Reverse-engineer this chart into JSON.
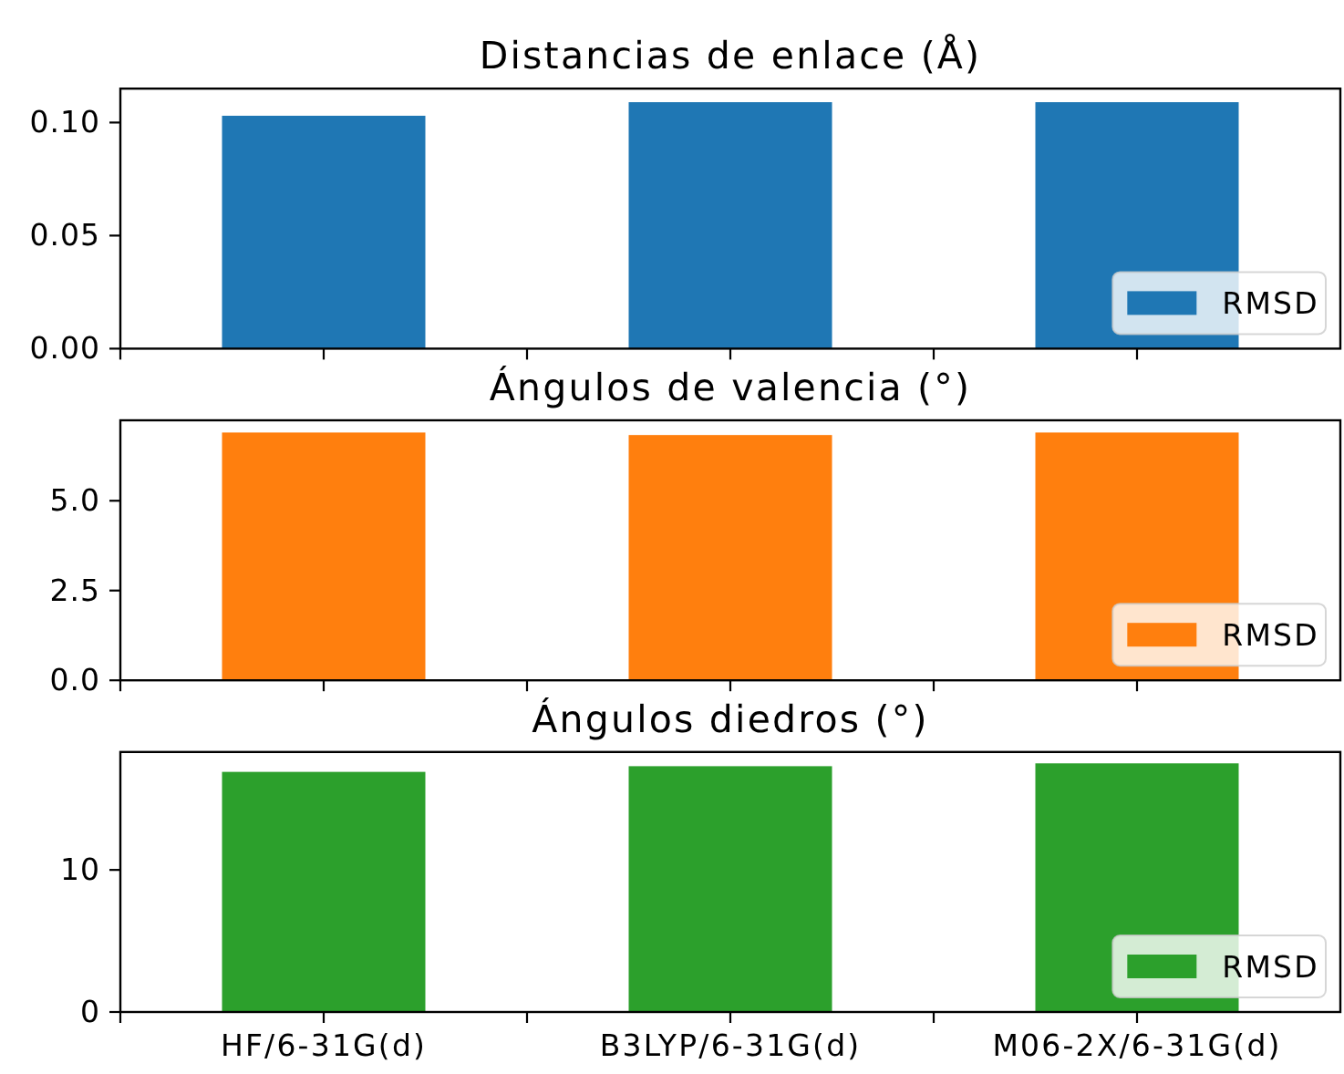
{
  "chart_data": [
    {
      "type": "bar",
      "title": "Distancias de enlace (Å)",
      "categories": [
        null,
        null,
        null
      ],
      "series": [
        {
          "name": "RMSD",
          "color": "#1f77b4",
          "values": [
            0.103,
            0.109,
            0.109
          ]
        }
      ],
      "ylim": [
        0,
        0.115
      ],
      "yticks": [
        {
          "value": 0,
          "label": "0.00"
        },
        {
          "value": 0.05,
          "label": "0.05"
        },
        {
          "value": 0.1,
          "label": "0.10"
        }
      ],
      "legend": "bottom right",
      "tick_labels": "y"
    },
    {
      "type": "bar",
      "title": "Ángulos de valencia (°)",
      "categories": [
        null,
        null,
        null
      ],
      "series": [
        {
          "name": "RMSD",
          "color": "#ff7f0e",
          "values": [
            6.9,
            6.83,
            6.9
          ]
        }
      ],
      "ylim": [
        0,
        7.24
      ],
      "yticks": [
        {
          "value": 0,
          "label": "0.0"
        },
        {
          "value": 2.5,
          "label": "2.5"
        },
        {
          "value": 5,
          "label": "5.0"
        }
      ],
      "legend": "bottom right",
      "tick_labels": "y"
    },
    {
      "type": "bar",
      "title": "Ángulos diedros (°)",
      "categories": [
        "HF/6-31G(d)",
        "B3LYP/6-31G(d)",
        "M06-2X/6-31G(d)"
      ],
      "series": [
        {
          "name": "RMSD",
          "color": "#2ca02c",
          "values": [
            16.9,
            17.3,
            17.5
          ]
        }
      ],
      "ylim": [
        0,
        18.3
      ],
      "yticks": [
        0,
        10
      ],
      "legend": "bottom right"
    }
  ]
}
